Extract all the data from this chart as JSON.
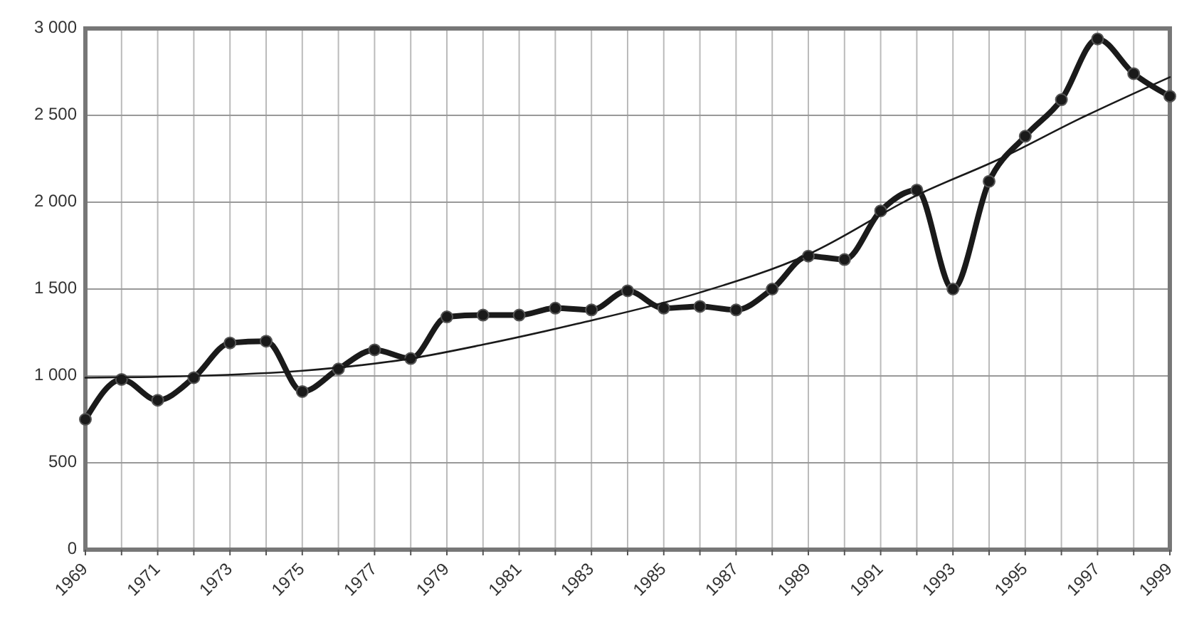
{
  "chart_data": {
    "type": "line",
    "x": [
      1969,
      1970,
      1971,
      1972,
      1973,
      1974,
      1975,
      1976,
      1977,
      1978,
      1979,
      1980,
      1981,
      1982,
      1983,
      1984,
      1985,
      1986,
      1987,
      1988,
      1989,
      1990,
      1991,
      1992,
      1993,
      1994,
      1995,
      1996,
      1997,
      1998,
      1999
    ],
    "series": [
      {
        "color": "#1a1a1a",
        "marker": "circle",
        "values": [
          750,
          980,
          860,
          990,
          1190,
          1200,
          910,
          1040,
          1150,
          1100,
          1340,
          1350,
          1350,
          1390,
          1380,
          1490,
          1390,
          1400,
          1380,
          1500,
          1690,
          1670,
          1950,
          2070,
          1500,
          2120,
          2380,
          2590,
          2940,
          2740,
          2610
        ]
      },
      {
        "color": "#1a1a1a",
        "marker": "none",
        "x": [
          1969,
          1972,
          1975,
          1978,
          1980,
          1982.6,
          1986,
          1989,
          1992,
          1994.3,
          1996.5,
          1999
        ],
        "values": [
          990,
          1000,
          1030,
          1100,
          1180,
          1300,
          1480,
          1700,
          2040,
          2250,
          2480,
          2720
        ]
      }
    ],
    "xlim": [
      1969,
      1999
    ],
    "xticks": [
      1969,
      {
        "value": 1970,
        "label": null
      },
      1971,
      {
        "value": 1972,
        "label": null
      },
      1973,
      {
        "value": 1974,
        "label": null
      },
      1975,
      {
        "value": 1976,
        "label": null
      },
      1977,
      {
        "value": 1978,
        "label": null
      },
      1979,
      {
        "value": 1980,
        "label": null
      },
      1981,
      {
        "value": 1982,
        "label": null
      },
      1983,
      {
        "value": 1984,
        "label": null
      },
      1985,
      {
        "value": 1986,
        "label": null
      },
      1987,
      {
        "value": 1988,
        "label": null
      },
      1989,
      {
        "value": 1990,
        "label": null
      },
      1991,
      {
        "value": 1992,
        "label": null
      },
      1993,
      {
        "value": 1994,
        "label": null
      },
      1995,
      {
        "value": 1996,
        "label": null
      },
      1997,
      {
        "value": 1998,
        "label": null
      },
      1999
    ],
    "ylim": [
      0,
      3000
    ],
    "yticks": [
      0,
      500,
      {
        "value": 1000,
        "label": "1 000"
      },
      {
        "value": 1500,
        "label": "1 500"
      },
      {
        "value": 2000,
        "label": "2 000"
      },
      {
        "value": 2500,
        "label": "2 500"
      },
      {
        "value": 3000,
        "label": "3 000"
      }
    ],
    "grid": true
  }
}
